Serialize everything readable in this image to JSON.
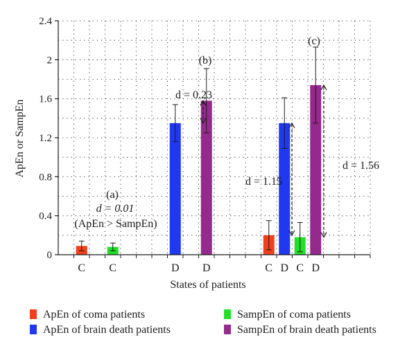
{
  "chart_data": {
    "type": "bar",
    "ylabel": "ApEn or SampEn",
    "xlabel": "States of patients",
    "ylim": [
      0,
      2.4
    ],
    "yticks": [
      "0",
      "0.4",
      "0.8",
      "1.2",
      "1.6",
      "2",
      "2.4"
    ],
    "grid": "dotted",
    "series_colors": {
      "apen_coma": "#f0401c",
      "sampen_coma": "#22e02a",
      "apen_bd": "#1f38f0",
      "sampen_bd": "#942a8c"
    },
    "bars": [
      {
        "slot": 1,
        "series": "apen_coma",
        "label": "C",
        "value": 0.09,
        "err": 0.05
      },
      {
        "slot": 3,
        "series": "sampen_coma",
        "label": "C",
        "value": 0.08,
        "err": 0.04
      },
      {
        "slot": 7,
        "series": "apen_bd",
        "label": "D",
        "value": 1.35,
        "err": 0.19
      },
      {
        "slot": 9,
        "series": "sampen_bd",
        "label": "D",
        "value": 1.58,
        "err": 0.33
      },
      {
        "slot": 13,
        "series": "apen_coma",
        "label": "C",
        "value": 0.2,
        "err": 0.15
      },
      {
        "slot": 14,
        "series": "apen_bd",
        "label": "D",
        "value": 1.35,
        "err": 0.26
      },
      {
        "slot": 15,
        "series": "sampen_coma",
        "label": "C",
        "value": 0.18,
        "err": 0.15
      },
      {
        "slot": 16,
        "series": "sampen_bd",
        "label": "D",
        "value": 1.74,
        "err": 0.39
      }
    ],
    "annotations": {
      "a_label": "(a)",
      "a_d": "d = 0.01",
      "a_note": "(ApEn > SampEn)",
      "b_label": "(b)",
      "b_d": "d = 0.23",
      "c_label": "(c)",
      "c_d1": "d = 1.15",
      "c_d2": "d = 1.56"
    },
    "legend": [
      {
        "series": "apen_coma",
        "label": "ApEn of coma patients"
      },
      {
        "series": "sampen_coma",
        "label": "SampEn of coma patients"
      },
      {
        "series": "apen_bd",
        "label": "ApEn of brain death patients"
      },
      {
        "series": "sampen_bd",
        "label": "SampEn of brain death patients"
      }
    ]
  }
}
